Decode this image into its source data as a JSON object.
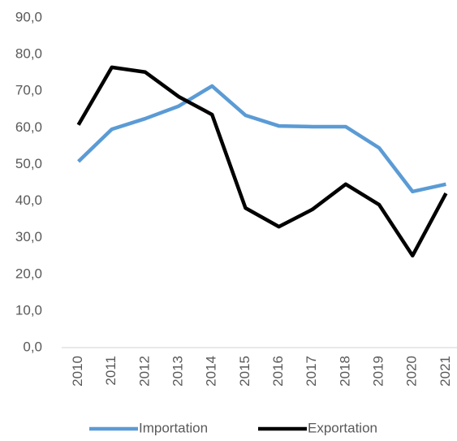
{
  "chart_data": {
    "type": "line",
    "categories": [
      "2010",
      "2011",
      "2012",
      "2013",
      "2014",
      "2015",
      "2016",
      "2017",
      "2018",
      "2019",
      "2020",
      "2021"
    ],
    "series": [
      {
        "name": "Importation",
        "color": "#5b9bd5",
        "values": [
          50.8,
          59.6,
          62.5,
          65.9,
          71.4,
          63.4,
          60.5,
          60.3,
          60.3,
          54.5,
          42.6,
          44.6
        ]
      },
      {
        "name": "Exportation",
        "color": "#000000",
        "values": [
          60.8,
          76.5,
          75.2,
          68.5,
          63.6,
          38.1,
          33.0,
          37.7,
          44.6,
          39.0,
          25.1,
          42.1
        ]
      }
    ],
    "ylim": [
      0,
      90
    ],
    "yticks": [
      {
        "value": 0,
        "label": "0,0"
      },
      {
        "value": 10,
        "label": "10,0"
      },
      {
        "value": 20,
        "label": "20,0"
      },
      {
        "value": 30,
        "label": "30,0"
      },
      {
        "value": 40,
        "label": "40,0"
      },
      {
        "value": 50,
        "label": "50,0"
      },
      {
        "value": 60,
        "label": "60,0"
      },
      {
        "value": 70,
        "label": "70,0"
      },
      {
        "value": 80,
        "label": "80,0"
      },
      {
        "value": 90,
        "label": "90,0"
      }
    ],
    "grid": false,
    "legend": "bottom"
  }
}
